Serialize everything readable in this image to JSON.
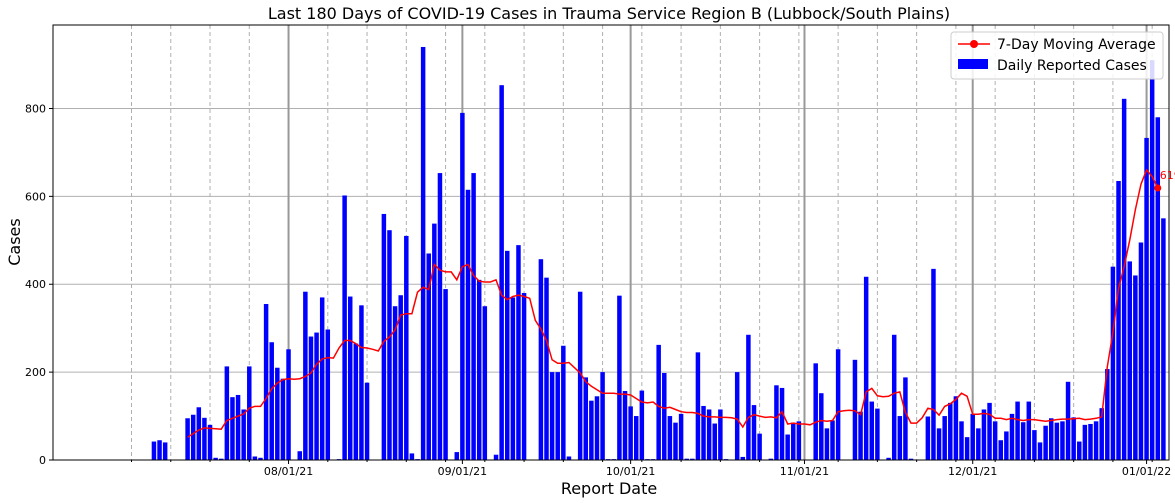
{
  "chart_data": {
    "type": "bar",
    "title": "Last 180 Days of COVID-19 Cases in Trauma Service Region B (Lubbock/South Plains)",
    "xlabel": "Report Date",
    "ylabel": "Cases",
    "ylim": [
      0,
      990
    ],
    "yticks": [
      0,
      200,
      400,
      600,
      800
    ],
    "xticks": [
      "08/01/21",
      "09/01/21",
      "10/01/21",
      "11/01/21",
      "12/01/21",
      "01/01/22"
    ],
    "xrange_days": [
      -18,
      181
    ],
    "x_start_date": "2021-07-08",
    "grid": true,
    "legend_position": "top-right",
    "colors": {
      "bar": "#0000ff",
      "line": "#ff0000"
    },
    "series": [
      {
        "name": "Daily Reported Cases",
        "type": "bar",
        "values": [
          42,
          45,
          40,
          0,
          0,
          0,
          95,
          103,
          120,
          96,
          80,
          5,
          3,
          213,
          143,
          148,
          115,
          213,
          8,
          5,
          355,
          268,
          210,
          185,
          252,
          0,
          20,
          383,
          281,
          290,
          370,
          297,
          0,
          2,
          602,
          372,
          265,
          352,
          176,
          0,
          0,
          560,
          523,
          350,
          375,
          510,
          15,
          2,
          940,
          470,
          538,
          653,
          389,
          0,
          18,
          790,
          615,
          653,
          410,
          350,
          0,
          12,
          853,
          476,
          370,
          489,
          380,
          0,
          0,
          457,
          415,
          200,
          200,
          260,
          8,
          0,
          383,
          188,
          135,
          145,
          200,
          2,
          2,
          374,
          157,
          122,
          100,
          158,
          2,
          2,
          262,
          198,
          100,
          85,
          105,
          3,
          3,
          245,
          123,
          115,
          83,
          115,
          2,
          0,
          200,
          7,
          285,
          125,
          60,
          0,
          3,
          170,
          164,
          58,
          85,
          88,
          0,
          0,
          220,
          152,
          72,
          90,
          252,
          0,
          0,
          228,
          110,
          417,
          133,
          117,
          0,
          5,
          285,
          100,
          188,
          3,
          0,
          0,
          99,
          435,
          72,
          100,
          130,
          145,
          88,
          52,
          105,
          72,
          115,
          130,
          88,
          45,
          65,
          105,
          133,
          86,
          133,
          68,
          40,
          78,
          95,
          85,
          88,
          178,
          97,
          42,
          80,
          82,
          88,
          118,
          207,
          440,
          635,
          822,
          452,
          420,
          495,
          733,
          910,
          780,
          550
        ],
        "x_offset_days": 0
      },
      {
        "name": "7-Day Moving Average",
        "type": "line",
        "points": [
          [
            6,
            52
          ],
          [
            7,
            60
          ],
          [
            8,
            68
          ],
          [
            9,
            73
          ],
          [
            10,
            72
          ],
          [
            11,
            71
          ],
          [
            12,
            70
          ],
          [
            13,
            90
          ],
          [
            14,
            95
          ],
          [
            15,
            100
          ],
          [
            16,
            105
          ],
          [
            17,
            118
          ],
          [
            18,
            122
          ],
          [
            19,
            122
          ],
          [
            20,
            140
          ],
          [
            21,
            162
          ],
          [
            22,
            175
          ],
          [
            23,
            183
          ],
          [
            24,
            185
          ],
          [
            25,
            184
          ],
          [
            26,
            185
          ],
          [
            27,
            190
          ],
          [
            28,
            198
          ],
          [
            29,
            218
          ],
          [
            30,
            230
          ],
          [
            31,
            233
          ],
          [
            32,
            232
          ],
          [
            33,
            255
          ],
          [
            34,
            272
          ],
          [
            35,
            272
          ],
          [
            36,
            265
          ],
          [
            37,
            256
          ],
          [
            38,
            255
          ],
          [
            39,
            252
          ],
          [
            40,
            248
          ],
          [
            41,
            270
          ],
          [
            42,
            280
          ],
          [
            43,
            296
          ],
          [
            44,
            330
          ],
          [
            45,
            333
          ],
          [
            46,
            333
          ],
          [
            47,
            382
          ],
          [
            48,
            393
          ],
          [
            49,
            388
          ],
          [
            50,
            445
          ],
          [
            51,
            432
          ],
          [
            52,
            428
          ],
          [
            53,
            428
          ],
          [
            54,
            410
          ],
          [
            55,
            440
          ],
          [
            56,
            445
          ],
          [
            57,
            420
          ],
          [
            58,
            407
          ],
          [
            59,
            405
          ],
          [
            60,
            405
          ],
          [
            61,
            410
          ],
          [
            62,
            375
          ],
          [
            63,
            365
          ],
          [
            64,
            372
          ],
          [
            65,
            375
          ],
          [
            66,
            372
          ],
          [
            67,
            368
          ],
          [
            68,
            318
          ],
          [
            69,
            298
          ],
          [
            70,
            272
          ],
          [
            71,
            228
          ],
          [
            72,
            220
          ],
          [
            73,
            220
          ],
          [
            74,
            222
          ],
          [
            75,
            210
          ],
          [
            76,
            198
          ],
          [
            77,
            178
          ],
          [
            78,
            168
          ],
          [
            79,
            160
          ],
          [
            80,
            152
          ],
          [
            81,
            152
          ],
          [
            82,
            152
          ],
          [
            83,
            150
          ],
          [
            84,
            150
          ],
          [
            85,
            148
          ],
          [
            86,
            140
          ],
          [
            87,
            132
          ],
          [
            88,
            130
          ],
          [
            89,
            132
          ],
          [
            90,
            122
          ],
          [
            91,
            118
          ],
          [
            92,
            120
          ],
          [
            93,
            115
          ],
          [
            94,
            110
          ],
          [
            95,
            108
          ],
          [
            96,
            108
          ],
          [
            97,
            106
          ],
          [
            98,
            100
          ],
          [
            99,
            98
          ],
          [
            100,
            98
          ],
          [
            101,
            97
          ],
          [
            102,
            97
          ],
          [
            103,
            96
          ],
          [
            104,
            93
          ],
          [
            105,
            75
          ],
          [
            106,
            97
          ],
          [
            107,
            103
          ],
          [
            108,
            100
          ],
          [
            109,
            97
          ],
          [
            110,
            98
          ],
          [
            111,
            96
          ],
          [
            112,
            110
          ],
          [
            113,
            82
          ],
          [
            114,
            84
          ],
          [
            115,
            82
          ],
          [
            116,
            82
          ],
          [
            117,
            80
          ],
          [
            118,
            86
          ],
          [
            119,
            90
          ],
          [
            120,
            88
          ],
          [
            121,
            90
          ],
          [
            122,
            110
          ],
          [
            123,
            112
          ],
          [
            124,
            113
          ],
          [
            125,
            112
          ],
          [
            126,
            103
          ],
          [
            127,
            155
          ],
          [
            128,
            163
          ],
          [
            129,
            146
          ],
          [
            130,
            144
          ],
          [
            131,
            145
          ],
          [
            132,
            152
          ],
          [
            133,
            155
          ],
          [
            134,
            108
          ],
          [
            135,
            84
          ],
          [
            136,
            84
          ],
          [
            137,
            96
          ],
          [
            138,
            118
          ],
          [
            139,
            115
          ],
          [
            140,
            102
          ],
          [
            141,
            122
          ],
          [
            142,
            128
          ],
          [
            143,
            138
          ],
          [
            144,
            152
          ],
          [
            145,
            145
          ],
          [
            146,
            104
          ],
          [
            147,
            104
          ],
          [
            148,
            106
          ],
          [
            149,
            104
          ],
          [
            150,
            95
          ],
          [
            151,
            95
          ],
          [
            152,
            92
          ],
          [
            153,
            95
          ],
          [
            154,
            92
          ],
          [
            155,
            90
          ],
          [
            156,
            92
          ],
          [
            157,
            92
          ],
          [
            158,
            90
          ],
          [
            159,
            88
          ],
          [
            160,
            90
          ],
          [
            161,
            92
          ],
          [
            162,
            93
          ],
          [
            163,
            93
          ],
          [
            164,
            94
          ],
          [
            165,
            95
          ],
          [
            166,
            92
          ],
          [
            167,
            93
          ],
          [
            168,
            95
          ],
          [
            169,
            98
          ],
          [
            170,
            212
          ],
          [
            171,
            290
          ],
          [
            172,
            390
          ],
          [
            173,
            440
          ],
          [
            174,
            500
          ],
          [
            175,
            570
          ],
          [
            176,
            628
          ],
          [
            177,
            660
          ],
          [
            178,
            645
          ],
          [
            179,
            619
          ]
        ]
      }
    ],
    "annotation": {
      "x_day": 179,
      "y": 619,
      "text": "619"
    }
  },
  "legend": {
    "line_label": "7-Day Moving Average",
    "bar_label": "Daily Reported Cases"
  }
}
